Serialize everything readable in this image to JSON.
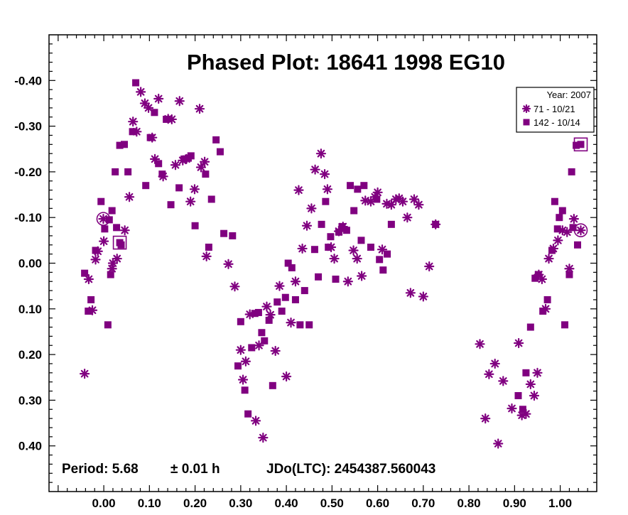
{
  "chart_data": {
    "type": "scatter",
    "title": "Phased Plot: 18641 1998 EG10",
    "xlabel": "",
    "ylabel": "",
    "xlim": [
      -0.12,
      1.08
    ],
    "ylim": [
      0.5,
      -0.5
    ],
    "y_inverted": true,
    "x_ticks": [
      "0.00",
      "0.10",
      "0.20",
      "0.30",
      "0.40",
      "0.50",
      "0.60",
      "0.70",
      "0.80",
      "0.90",
      "1.00"
    ],
    "y_ticks": [
      "-0.40",
      "-0.30",
      "-0.20",
      "-0.10",
      "0.00",
      "0.10",
      "0.20",
      "0.30",
      "0.40"
    ],
    "grid": false,
    "legend": {
      "position": "top-right",
      "header": "Year: 2007"
    },
    "footer": {
      "period": "Period: 5.68",
      "error": "± 0.01 h",
      "epoch": "JDo(LTC): 2454387.560043"
    },
    "colors": {
      "marker": "#800080",
      "axis": "#000000"
    },
    "series": [
      {
        "name": "71 - 10/21",
        "marker": "asterisk",
        "highlight_first_last": "circle",
        "points": [
          [
            -0.001,
            -0.097
          ],
          [
            -0.042,
            0.242
          ],
          [
            -0.033,
            0.035
          ],
          [
            -0.025,
            0.103
          ],
          [
            -0.018,
            -0.008
          ],
          [
            -0.013,
            -0.026
          ],
          [
            0.0,
            -0.048
          ],
          [
            0.018,
            0.012
          ],
          [
            0.02,
            0.0
          ],
          [
            0.029,
            -0.01
          ],
          [
            0.046,
            -0.072
          ],
          [
            0.056,
            -0.145
          ],
          [
            0.064,
            -0.31
          ],
          [
            0.072,
            -0.288
          ],
          [
            0.081,
            -0.375
          ],
          [
            0.09,
            -0.35
          ],
          [
            0.098,
            -0.34
          ],
          [
            0.106,
            -0.275
          ],
          [
            0.112,
            -0.228
          ],
          [
            0.12,
            -0.36
          ],
          [
            0.13,
            -0.19
          ],
          [
            0.141,
            -0.316
          ],
          [
            0.149,
            -0.315
          ],
          [
            0.157,
            -0.215
          ],
          [
            0.166,
            -0.355
          ],
          [
            0.173,
            -0.225
          ],
          [
            0.181,
            -0.228
          ],
          [
            0.19,
            -0.135
          ],
          [
            0.199,
            -0.162
          ],
          [
            0.21,
            -0.338
          ],
          [
            0.213,
            -0.21
          ],
          [
            0.221,
            -0.222
          ],
          [
            0.225,
            -0.015
          ],
          [
            0.273,
            0.002
          ],
          [
            0.287,
            0.051
          ],
          [
            0.3,
            0.19
          ],
          [
            0.305,
            0.255
          ],
          [
            0.311,
            0.215
          ],
          [
            0.32,
            0.112
          ],
          [
            0.333,
            0.345
          ],
          [
            0.34,
            0.18
          ],
          [
            0.349,
            0.382
          ],
          [
            0.357,
            0.095
          ],
          [
            0.365,
            0.113
          ],
          [
            0.376,
            0.192
          ],
          [
            0.385,
            0.05
          ],
          [
            0.4,
            0.248
          ],
          [
            0.41,
            0.13
          ],
          [
            0.42,
            0.04
          ],
          [
            0.427,
            -0.16
          ],
          [
            0.435,
            -0.032
          ],
          [
            0.445,
            -0.082
          ],
          [
            0.455,
            -0.12
          ],
          [
            0.463,
            -0.205
          ],
          [
            0.476,
            -0.24
          ],
          [
            0.484,
            -0.195
          ],
          [
            0.49,
            -0.162
          ],
          [
            0.498,
            -0.035
          ],
          [
            0.505,
            -0.01
          ],
          [
            0.515,
            -0.07
          ],
          [
            0.524,
            -0.08
          ],
          [
            0.535,
            0.04
          ],
          [
            0.547,
            -0.028
          ],
          [
            0.555,
            -0.01
          ],
          [
            0.565,
            0.028
          ],
          [
            0.573,
            -0.137
          ],
          [
            0.585,
            -0.135
          ],
          [
            0.594,
            -0.145
          ],
          [
            0.6,
            -0.155
          ],
          [
            0.61,
            -0.03
          ],
          [
            0.62,
            -0.13
          ],
          [
            0.63,
            -0.128
          ],
          [
            0.64,
            -0.14
          ],
          [
            0.647,
            -0.142
          ],
          [
            0.655,
            -0.135
          ],
          [
            0.665,
            -0.1
          ],
          [
            0.672,
            0.065
          ],
          [
            0.68,
            -0.14
          ],
          [
            0.69,
            -0.128
          ],
          [
            0.7,
            0.073
          ],
          [
            0.713,
            0.007
          ],
          [
            0.727,
            -0.085
          ],
          [
            0.824,
            0.177
          ],
          [
            0.836,
            0.34
          ],
          [
            0.844,
            0.243
          ],
          [
            0.857,
            0.22
          ],
          [
            0.864,
            0.395
          ],
          [
            0.875,
            0.258
          ],
          [
            0.894,
            0.318
          ],
          [
            0.909,
            0.175
          ],
          [
            0.916,
            0.333
          ],
          [
            0.925,
            0.33
          ],
          [
            0.935,
            0.265
          ],
          [
            0.943,
            0.29
          ],
          [
            0.95,
            0.24
          ],
          [
            0.953,
            0.025
          ],
          [
            0.96,
            0.035
          ],
          [
            0.968,
            0.1
          ],
          [
            0.975,
            -0.01
          ],
          [
            0.985,
            -0.032
          ],
          [
            0.995,
            -0.05
          ],
          [
            1.005,
            -0.072
          ],
          [
            1.015,
            -0.068
          ],
          [
            1.02,
            0.012
          ],
          [
            1.03,
            -0.097
          ],
          [
            1.045,
            -0.072
          ]
        ]
      },
      {
        "name": "142 - 10/14",
        "marker": "square",
        "highlight_first_last": "square",
        "points": [
          [
            0.035,
            -0.045
          ],
          [
            -0.042,
            0.022
          ],
          [
            -0.034,
            0.105
          ],
          [
            -0.028,
            0.08
          ],
          [
            -0.018,
            -0.028
          ],
          [
            -0.006,
            -0.135
          ],
          [
            0.002,
            -0.075
          ],
          [
            0.009,
            0.135
          ],
          [
            0.012,
            -0.095
          ],
          [
            0.015,
            0.025
          ],
          [
            0.018,
            -0.115
          ],
          [
            0.025,
            -0.2
          ],
          [
            0.028,
            -0.078
          ],
          [
            0.035,
            -0.258
          ],
          [
            0.038,
            -0.04
          ],
          [
            0.045,
            -0.26
          ],
          [
            0.053,
            -0.2
          ],
          [
            0.063,
            -0.288
          ],
          [
            0.07,
            -0.395
          ],
          [
            0.092,
            -0.17
          ],
          [
            0.102,
            -0.275
          ],
          [
            0.111,
            -0.33
          ],
          [
            0.12,
            -0.218
          ],
          [
            0.128,
            -0.195
          ],
          [
            0.137,
            -0.315
          ],
          [
            0.147,
            -0.128
          ],
          [
            0.165,
            -0.165
          ],
          [
            0.176,
            -0.228
          ],
          [
            0.185,
            -0.23
          ],
          [
            0.191,
            -0.235
          ],
          [
            0.2,
            -0.082
          ],
          [
            0.223,
            -0.195
          ],
          [
            0.23,
            -0.035
          ],
          [
            0.236,
            -0.14
          ],
          [
            0.246,
            -0.27
          ],
          [
            0.255,
            -0.244
          ],
          [
            0.263,
            -0.065
          ],
          [
            0.282,
            -0.06
          ],
          [
            0.294,
            0.225
          ],
          [
            0.3,
            0.128
          ],
          [
            0.309,
            0.278
          ],
          [
            0.316,
            0.33
          ],
          [
            0.324,
            0.185
          ],
          [
            0.331,
            0.11
          ],
          [
            0.339,
            0.108
          ],
          [
            0.346,
            0.152
          ],
          [
            0.352,
            0.17
          ],
          [
            0.362,
            0.125
          ],
          [
            0.37,
            0.268
          ],
          [
            0.38,
            0.085
          ],
          [
            0.39,
            0.105
          ],
          [
            0.398,
            0.075
          ],
          [
            0.404,
            0.0
          ],
          [
            0.412,
            0.01
          ],
          [
            0.42,
            0.08
          ],
          [
            0.43,
            0.135
          ],
          [
            0.44,
            0.06
          ],
          [
            0.45,
            0.135
          ],
          [
            0.462,
            -0.03
          ],
          [
            0.47,
            0.03
          ],
          [
            0.477,
            -0.085
          ],
          [
            0.486,
            -0.135
          ],
          [
            0.492,
            -0.035
          ],
          [
            0.497,
            -0.058
          ],
          [
            0.508,
            0.035
          ],
          [
            0.515,
            -0.068
          ],
          [
            0.522,
            -0.08
          ],
          [
            0.532,
            -0.072
          ],
          [
            0.54,
            -0.17
          ],
          [
            0.548,
            -0.115
          ],
          [
            0.556,
            -0.162
          ],
          [
            0.564,
            -0.05
          ],
          [
            0.57,
            -0.17
          ],
          [
            0.585,
            -0.035
          ],
          [
            0.598,
            -0.14
          ],
          [
            0.604,
            -0.008
          ],
          [
            0.612,
            0.015
          ],
          [
            0.621,
            -0.02
          ],
          [
            0.63,
            -0.085
          ],
          [
            0.727,
            -0.085
          ],
          [
            0.908,
            0.29
          ],
          [
            0.918,
            0.32
          ],
          [
            0.925,
            0.24
          ],
          [
            0.935,
            0.14
          ],
          [
            0.945,
            0.033
          ],
          [
            0.952,
            0.025
          ],
          [
            0.962,
            0.105
          ],
          [
            0.972,
            0.08
          ],
          [
            0.982,
            -0.028
          ],
          [
            0.988,
            -0.135
          ],
          [
            0.994,
            -0.075
          ],
          [
            0.998,
            -0.1
          ],
          [
            1.005,
            -0.115
          ],
          [
            1.01,
            0.135
          ],
          [
            1.02,
            0.025
          ],
          [
            1.025,
            -0.2
          ],
          [
            1.028,
            -0.078
          ],
          [
            1.035,
            -0.258
          ],
          [
            1.038,
            -0.04
          ],
          [
            1.045,
            -0.26
          ]
        ]
      }
    ]
  }
}
